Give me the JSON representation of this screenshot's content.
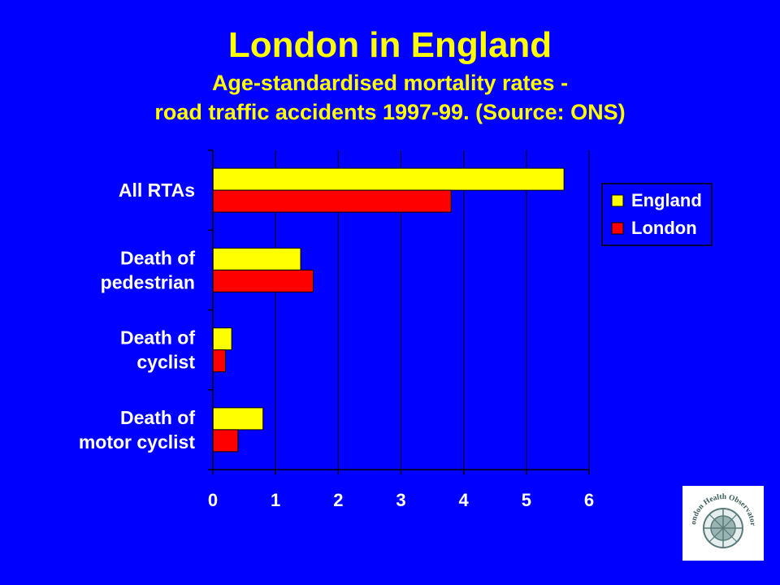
{
  "title": {
    "main": "London in England",
    "sub_line1": "Age-standardised mortality rates -",
    "sub_line2": "road traffic accidents 1997-99. (Source: ONS)"
  },
  "chart_data": {
    "type": "bar",
    "orientation": "horizontal",
    "categories": [
      [
        "All RTAs"
      ],
      [
        "Death of",
        "pedestrian"
      ],
      [
        "Death of",
        "cyclist"
      ],
      [
        "Death of",
        "motor cyclist"
      ]
    ],
    "series": [
      {
        "name": "England",
        "color": "#FFFF00",
        "values": [
          5.6,
          1.4,
          0.3,
          0.8
        ]
      },
      {
        "name": "London",
        "color": "#FF0000",
        "values": [
          3.8,
          1.6,
          0.2,
          0.4
        ]
      }
    ],
    "xlim": [
      0,
      6
    ],
    "xticks": [
      "0",
      "1",
      "2",
      "3",
      "4",
      "5",
      "6"
    ],
    "grid": true,
    "legend_position": "right"
  },
  "logo": {
    "text": "London Health Observatory"
  }
}
